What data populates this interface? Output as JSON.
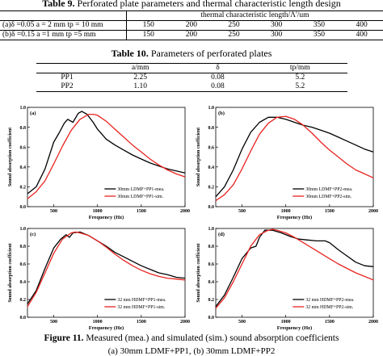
{
  "table9": {
    "label": "Table 9.",
    "title": "Perforated plate parameters and thermal characteristic length design",
    "header": "thermal characteristic length/Λ'/um",
    "rows": [
      {
        "name": "(a)δ =0.05 a = 2 mm tp = 10 mm",
        "values": [
          "150",
          "200",
          "250",
          "300",
          "350",
          "400"
        ]
      },
      {
        "name": "(b)δ =0.15 a =1 mm tp =5 mm",
        "values": [
          "150",
          "200",
          "250",
          "300",
          "350",
          "400"
        ]
      }
    ]
  },
  "table10": {
    "label": "Table 10.",
    "title": "Parameters of perforated plates",
    "headers": [
      "",
      "a/mm",
      "δ",
      "tp/mm"
    ],
    "rows": [
      [
        "PP1",
        "2.25",
        "0.08",
        "5.2"
      ],
      [
        "PP2",
        "1.10",
        "0.08",
        "5.2"
      ]
    ]
  },
  "figure": {
    "label": "Figure 11.",
    "caption": "Measured (mea.) and simulated (sim.) sound absorption coefficients",
    "caption_line2": "(a) 30mm LDMF+PP1, (b) 30mm LDMF+PP2"
  },
  "chart_data": [
    {
      "type": "line",
      "panel": "(a)",
      "xlabel": "Frequency (Hz)",
      "ylabel": "Sound absorption coefficient",
      "xlim": [
        200,
        2000
      ],
      "ylim": [
        0.0,
        1.0
      ],
      "xticks": [
        "500",
        "1000",
        "1500",
        "2000"
      ],
      "yticks": [
        "0.0",
        "0.2",
        "0.4",
        "0.6",
        "0.8",
        "1.0"
      ],
      "legend_position": "bottom-right",
      "grid": false,
      "series": [
        {
          "name": "30mm LDMF+PP1-mea.",
          "color": "#000000",
          "x": [
            200,
            300,
            400,
            500,
            560,
            620,
            660,
            720,
            780,
            820,
            880,
            950,
            1000,
            1100,
            1200,
            1300,
            1400,
            1500,
            1600,
            1700,
            1800,
            1900,
            2000
          ],
          "y": [
            0.13,
            0.2,
            0.38,
            0.65,
            0.74,
            0.84,
            0.88,
            0.85,
            0.94,
            0.96,
            0.93,
            0.85,
            0.78,
            0.68,
            0.62,
            0.57,
            0.52,
            0.48,
            0.44,
            0.41,
            0.38,
            0.36,
            0.34
          ]
        },
        {
          "name": "30mm LDMF+PP1-sim.",
          "color": "#e8231f",
          "x": [
            200,
            300,
            400,
            500,
            600,
            700,
            800,
            900,
            950,
            1000,
            1100,
            1200,
            1300,
            1400,
            1500,
            1600,
            1700,
            1800,
            1900,
            2000
          ],
          "y": [
            0.08,
            0.15,
            0.26,
            0.43,
            0.61,
            0.77,
            0.88,
            0.93,
            0.93,
            0.92,
            0.86,
            0.78,
            0.7,
            0.62,
            0.55,
            0.48,
            0.42,
            0.37,
            0.33,
            0.3
          ]
        }
      ]
    },
    {
      "type": "line",
      "panel": "(b)",
      "xlabel": "Frequency (Hz)",
      "ylabel": "Sound absorption coefficient",
      "xlim": [
        200,
        2000
      ],
      "ylim": [
        0.0,
        1.0
      ],
      "xticks": [
        "500",
        "1000",
        "1500",
        "2000"
      ],
      "yticks": [
        "0.0",
        "0.2",
        "0.4",
        "0.6",
        "0.8",
        "1.0"
      ],
      "legend_position": "bottom-right",
      "grid": false,
      "series": [
        {
          "name": "30mm LDMF+PP2-mea.",
          "color": "#000000",
          "x": [
            200,
            300,
            400,
            500,
            600,
            700,
            800,
            900,
            1000,
            1100,
            1200,
            1300,
            1400,
            1500,
            1600,
            1700,
            1800,
            1900,
            2000
          ],
          "y": [
            0.1,
            0.2,
            0.37,
            0.58,
            0.75,
            0.85,
            0.9,
            0.9,
            0.88,
            0.85,
            0.82,
            0.8,
            0.77,
            0.74,
            0.7,
            0.66,
            0.62,
            0.58,
            0.55
          ]
        },
        {
          "name": "30mm LDMF+PP2-sim.",
          "color": "#e8231f",
          "x": [
            200,
            300,
            400,
            500,
            600,
            700,
            800,
            900,
            1000,
            1100,
            1200,
            1300,
            1400,
            1500,
            1600,
            1700,
            1800,
            1900,
            2000
          ],
          "y": [
            0.06,
            0.12,
            0.22,
            0.38,
            0.56,
            0.73,
            0.84,
            0.9,
            0.91,
            0.88,
            0.82,
            0.74,
            0.65,
            0.57,
            0.5,
            0.43,
            0.37,
            0.33,
            0.29
          ]
        }
      ]
    },
    {
      "type": "line",
      "panel": "(c)",
      "xlabel": "Frequency (Hz)",
      "ylabel": "Sound absorption coefficient",
      "xlim": [
        200,
        2000
      ],
      "ylim": [
        0.0,
        1.0
      ],
      "xticks": [
        "500",
        "1000",
        "1500",
        "2000"
      ],
      "yticks": [
        "0.0",
        "0.2",
        "0.4",
        "0.6",
        "0.8",
        "1.0"
      ],
      "legend_position": "bottom-right",
      "grid": false,
      "series": [
        {
          "name": "32 mm HDMF+PP1-mea.",
          "color": "#000000",
          "x": [
            200,
            300,
            400,
            500,
            580,
            640,
            680,
            720,
            800,
            900,
            1000,
            1100,
            1200,
            1300,
            1400,
            1500,
            1600,
            1700,
            1800,
            1900,
            2000
          ],
          "y": [
            0.15,
            0.3,
            0.55,
            0.78,
            0.88,
            0.93,
            0.9,
            0.95,
            0.96,
            0.92,
            0.86,
            0.8,
            0.73,
            0.68,
            0.63,
            0.58,
            0.54,
            0.5,
            0.48,
            0.45,
            0.44
          ]
        },
        {
          "name": "32 mm HDMF+PP1-sim.",
          "color": "#e8231f",
          "x": [
            200,
            300,
            400,
            500,
            600,
            700,
            750,
            800,
            900,
            1000,
            1100,
            1200,
            1300,
            1400,
            1500,
            1600,
            1700,
            1800,
            1900,
            2000
          ],
          "y": [
            0.12,
            0.28,
            0.5,
            0.72,
            0.88,
            0.95,
            0.96,
            0.95,
            0.92,
            0.86,
            0.79,
            0.71,
            0.64,
            0.58,
            0.53,
            0.49,
            0.46,
            0.44,
            0.43,
            0.42
          ]
        }
      ]
    },
    {
      "type": "line",
      "panel": "(d)",
      "xlabel": "Frequency (Hz)",
      "ylabel": "Sound absorption coefficient",
      "xlim": [
        200,
        2000
      ],
      "ylim": [
        0.0,
        1.0
      ],
      "xticks": [
        "500",
        "1000",
        "1500",
        "2000"
      ],
      "yticks": [
        "0.0",
        "0.2",
        "0.4",
        "0.6",
        "0.8",
        "1.0"
      ],
      "legend_position": "bottom-right",
      "grid": false,
      "series": [
        {
          "name": "32 mm HDMF+PP2-mea.",
          "color": "#000000",
          "x": [
            200,
            300,
            400,
            500,
            600,
            660,
            700,
            760,
            850,
            950,
            1050,
            1150,
            1250,
            1350,
            1450,
            1500,
            1550,
            1600,
            1700,
            1800,
            1900,
            2000
          ],
          "y": [
            0.12,
            0.25,
            0.45,
            0.66,
            0.78,
            0.8,
            0.9,
            0.98,
            0.98,
            0.95,
            0.91,
            0.88,
            0.87,
            0.86,
            0.86,
            0.84,
            0.8,
            0.76,
            0.69,
            0.62,
            0.58,
            0.57
          ]
        },
        {
          "name": "32 mm HDMF+PP2-sim.",
          "color": "#e8231f",
          "x": [
            200,
            300,
            400,
            500,
            600,
            700,
            800,
            850,
            900,
            1000,
            1100,
            1200,
            1300,
            1400,
            1500,
            1600,
            1700,
            1800,
            1900,
            2000
          ],
          "y": [
            0.1,
            0.22,
            0.4,
            0.6,
            0.8,
            0.93,
            0.98,
            0.99,
            0.98,
            0.95,
            0.9,
            0.84,
            0.78,
            0.72,
            0.66,
            0.6,
            0.55,
            0.5,
            0.46,
            0.42
          ]
        }
      ]
    }
  ]
}
